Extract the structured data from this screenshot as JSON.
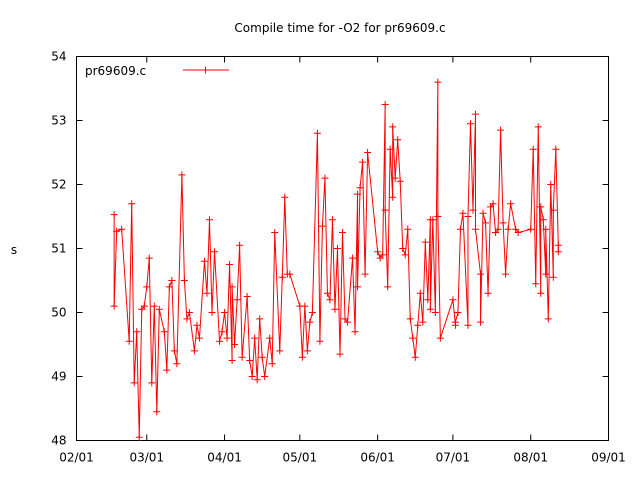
{
  "chart_data": {
    "type": "line",
    "title": "Compile time for -O2 for pr69609.c",
    "xlabel": "",
    "ylabel": "s",
    "ylim": [
      48,
      54
    ],
    "xlim": [
      "02/01",
      "09/01"
    ],
    "xticks": [
      "02/01",
      "03/01",
      "04/01",
      "05/01",
      "06/01",
      "07/01",
      "08/01",
      "09/01"
    ],
    "yticks": [
      "48",
      "49",
      "50",
      "51",
      "52",
      "53",
      "54"
    ],
    "legend": {
      "position": "top-left",
      "entries": [
        "pr69609.c"
      ]
    },
    "grid": false,
    "series": [
      {
        "name": "pr69609.c",
        "color": "#ff0000",
        "points": [
          [
            "02/16",
            51.53
          ],
          [
            "02/16",
            50.1
          ],
          [
            "02/17",
            51.27
          ],
          [
            "02/19",
            51.3
          ],
          [
            "02/22",
            49.55
          ],
          [
            "02/23",
            51.7
          ],
          [
            "02/24",
            48.9
          ],
          [
            "02/25",
            49.7
          ],
          [
            "02/26",
            48.05
          ],
          [
            "02/27",
            50.05
          ],
          [
            "02/28",
            50.1
          ],
          [
            "03/01",
            50.4
          ],
          [
            "03/02",
            50.85
          ],
          [
            "03/03",
            48.9
          ],
          [
            "03/04",
            50.1
          ],
          [
            "03/05",
            48.45
          ],
          [
            "03/06",
            50.05
          ],
          [
            "03/08",
            49.7
          ],
          [
            "03/09",
            49.1
          ],
          [
            "03/10",
            50.4
          ],
          [
            "03/11",
            50.5
          ],
          [
            "03/12",
            49.4
          ],
          [
            "03/13",
            49.2
          ],
          [
            "03/15",
            52.15
          ],
          [
            "03/16",
            50.5
          ],
          [
            "03/17",
            49.9
          ],
          [
            "03/18",
            50.0
          ],
          [
            "03/20",
            49.4
          ],
          [
            "03/21",
            49.8
          ],
          [
            "03/22",
            49.6
          ],
          [
            "03/24",
            50.8
          ],
          [
            "03/25",
            50.3
          ],
          [
            "03/26",
            51.45
          ],
          [
            "03/27",
            50.0
          ],
          [
            "03/28",
            50.95
          ],
          [
            "03/30",
            49.55
          ],
          [
            "03/31",
            49.7
          ],
          [
            "04/01",
            50.0
          ],
          [
            "04/02",
            49.6
          ],
          [
            "04/03",
            50.75
          ],
          [
            "04/04",
            49.25
          ],
          [
            "04/04",
            50.4
          ],
          [
            "04/05",
            49.5
          ],
          [
            "04/06",
            50.2
          ],
          [
            "04/07",
            51.05
          ],
          [
            "04/08",
            49.3
          ],
          [
            "04/10",
            50.25
          ],
          [
            "04/11",
            49.25
          ],
          [
            "04/12",
            49.0
          ],
          [
            "04/13",
            49.6
          ],
          [
            "04/14",
            48.95
          ],
          [
            "04/15",
            49.9
          ],
          [
            "04/16",
            49.3
          ],
          [
            "04/17",
            49.0
          ],
          [
            "04/19",
            49.6
          ],
          [
            "04/20",
            49.2
          ],
          [
            "04/21",
            51.25
          ],
          [
            "04/23",
            49.4
          ],
          [
            "04/24",
            50.55
          ],
          [
            "04/25",
            51.8
          ],
          [
            "04/26",
            50.6
          ],
          [
            "04/27",
            50.6
          ],
          [
            "05/01",
            50.1
          ],
          [
            "05/02",
            49.3
          ],
          [
            "05/03",
            50.1
          ],
          [
            "05/04",
            49.4
          ],
          [
            "05/05",
            49.85
          ],
          [
            "05/06",
            50.0
          ],
          [
            "05/08",
            52.8
          ],
          [
            "05/09",
            49.55
          ],
          [
            "05/10",
            51.35
          ],
          [
            "05/11",
            52.1
          ],
          [
            "05/12",
            50.3
          ],
          [
            "05/13",
            50.2
          ],
          [
            "05/14",
            51.45
          ],
          [
            "05/15",
            50.05
          ],
          [
            "05/16",
            51.0
          ],
          [
            "05/17",
            49.35
          ],
          [
            "05/18",
            51.25
          ],
          [
            "05/19",
            49.9
          ],
          [
            "05/20",
            49.85
          ],
          [
            "05/22",
            50.85
          ],
          [
            "05/23",
            49.7
          ],
          [
            "05/24",
            51.85
          ],
          [
            "05/24",
            50.4
          ],
          [
            "05/25",
            51.95
          ],
          [
            "05/26",
            52.35
          ],
          [
            "05/27",
            50.6
          ],
          [
            "05/28",
            52.5
          ],
          [
            "06/01",
            50.95
          ],
          [
            "06/02",
            50.85
          ],
          [
            "06/03",
            50.9
          ],
          [
            "06/04",
            53.25
          ],
          [
            "06/04",
            51.6
          ],
          [
            "06/05",
            50.4
          ],
          [
            "06/06",
            52.55
          ],
          [
            "06/07",
            51.8
          ],
          [
            "06/07",
            52.9
          ],
          [
            "06/08",
            52.1
          ],
          [
            "06/09",
            52.7
          ],
          [
            "06/10",
            52.05
          ],
          [
            "06/11",
            51.0
          ],
          [
            "06/12",
            50.9
          ],
          [
            "06/13",
            51.3
          ],
          [
            "06/14",
            49.9
          ],
          [
            "06/15",
            49.6
          ],
          [
            "06/16",
            49.3
          ],
          [
            "06/17",
            49.8
          ],
          [
            "06/18",
            50.3
          ],
          [
            "06/19",
            49.85
          ],
          [
            "06/20",
            51.1
          ],
          [
            "06/21",
            50.2
          ],
          [
            "06/22",
            51.45
          ],
          [
            "06/22",
            50.05
          ],
          [
            "06/23",
            51.45
          ],
          [
            "06/24",
            50.0
          ],
          [
            "06/25",
            53.6
          ],
          [
            "06/25",
            51.5
          ],
          [
            "06/26",
            49.6
          ],
          [
            "07/01",
            50.2
          ],
          [
            "07/02",
            49.8
          ],
          [
            "07/02",
            49.85
          ],
          [
            "07/03",
            50.0
          ],
          [
            "07/04",
            51.3
          ],
          [
            "07/05",
            51.55
          ],
          [
            "07/07",
            49.8
          ],
          [
            "07/07",
            51.5
          ],
          [
            "07/08",
            52.95
          ],
          [
            "07/09",
            51.6
          ],
          [
            "07/10",
            53.1
          ],
          [
            "07/10",
            51.3
          ],
          [
            "07/12",
            50.6
          ],
          [
            "07/12",
            49.85
          ],
          [
            "07/13",
            51.55
          ],
          [
            "07/14",
            51.4
          ],
          [
            "07/15",
            50.3
          ],
          [
            "07/16",
            51.65
          ],
          [
            "07/17",
            51.7
          ],
          [
            "07/18",
            51.25
          ],
          [
            "07/19",
            51.3
          ],
          [
            "07/20",
            52.85
          ],
          [
            "07/21",
            51.4
          ],
          [
            "07/22",
            50.6
          ],
          [
            "07/23",
            51.3
          ],
          [
            "07/24",
            51.7
          ],
          [
            "07/26",
            51.3
          ],
          [
            "07/27",
            51.25
          ],
          [
            "08/01",
            51.3
          ],
          [
            "08/02",
            52.55
          ],
          [
            "08/03",
            50.45
          ],
          [
            "08/04",
            52.9
          ],
          [
            "08/05",
            50.3
          ],
          [
            "08/05",
            51.65
          ],
          [
            "08/06",
            51.45
          ],
          [
            "08/07",
            50.6
          ],
          [
            "08/07",
            51.3
          ],
          [
            "08/08",
            49.9
          ],
          [
            "08/09",
            52.0
          ],
          [
            "08/10",
            50.55
          ],
          [
            "08/10",
            51.6
          ],
          [
            "08/11",
            52.55
          ],
          [
            "08/12",
            51.05
          ],
          [
            "08/12",
            50.95
          ]
        ]
      }
    ]
  }
}
